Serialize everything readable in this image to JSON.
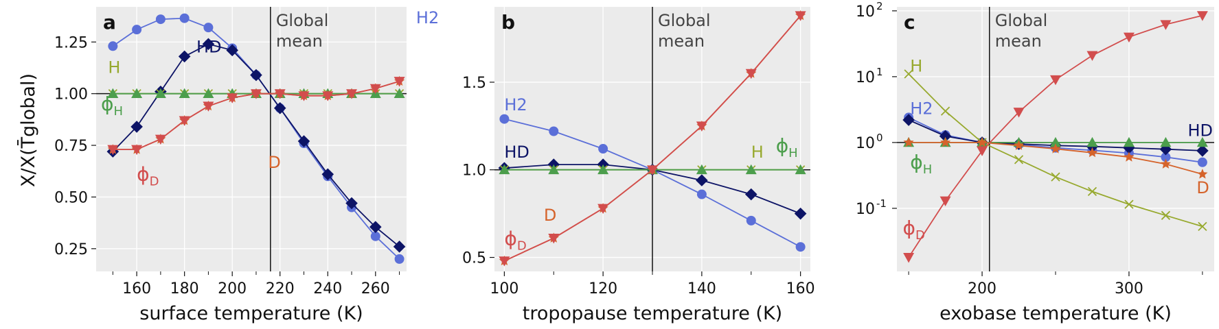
{
  "figure": {
    "ylabel": "X/X(T̄global)",
    "colors": {
      "panel_bg": "#ebebeb",
      "grid": "#ffffff",
      "H2": "#5b6fd8",
      "HD": "#0d1466",
      "H": "#97a92e",
      "D": "#d5632b",
      "phi_H": "#4c9e4c",
      "phi_D": "#d24d4d",
      "line": "#111111"
    }
  },
  "chart_data": [
    {
      "type": "line",
      "panel": "a",
      "xlabel": "surface temperature (K)",
      "xlim": [
        143,
        273
      ],
      "ylim": [
        0.14,
        1.42
      ],
      "yscale": "linear",
      "xticks": [
        160,
        180,
        200,
        220,
        240,
        260
      ],
      "xtick_labels": [
        "160",
        "180",
        "200",
        "220",
        "240",
        "260"
      ],
      "yticks": [
        0.25,
        0.5,
        0.75,
        1.0,
        1.25
      ],
      "ytick_labels": [
        "0.25",
        "0.50",
        "0.75",
        "1.00",
        "1.25"
      ],
      "hline": 1.0,
      "vline": {
        "x": 216,
        "label_line1": "Global",
        "label_line2": "mean"
      },
      "series": [
        {
          "name": "H2",
          "marker": "circle",
          "color_key": "H2",
          "label_pos": [
            277,
            1.34
          ],
          "x": [
            150,
            160,
            170,
            180,
            190,
            200,
            210,
            220,
            230,
            240,
            250,
            260,
            270
          ],
          "y": [
            1.23,
            1.31,
            1.36,
            1.365,
            1.32,
            1.22,
            1.09,
            0.93,
            0.76,
            0.6,
            0.45,
            0.31,
            0.2
          ]
        },
        {
          "name": "HD",
          "marker": "diamond",
          "color_key": "HD",
          "label_pos": [
            185,
            1.2
          ],
          "x": [
            150,
            160,
            170,
            180,
            190,
            200,
            210,
            220,
            230,
            240,
            250,
            260,
            270
          ],
          "y": [
            0.72,
            0.84,
            1.01,
            1.18,
            1.24,
            1.21,
            1.09,
            0.93,
            0.77,
            0.61,
            0.47,
            0.355,
            0.26
          ]
        },
        {
          "name": "H",
          "marker": "x",
          "color_key": "H",
          "label_pos": [
            148,
            1.1
          ],
          "x": [
            150,
            160,
            170,
            180,
            190,
            200,
            210,
            220,
            230,
            240,
            250,
            260,
            270
          ],
          "y": [
            1.0,
            1.0,
            1.0,
            1.0,
            1.0,
            1.0,
            1.0,
            1.0,
            1.0,
            1.0,
            1.0,
            1.0,
            1.0
          ]
        },
        {
          "name": "D",
          "marker": "star",
          "color_key": "D",
          "label_pos": [
            215,
            0.64
          ],
          "x": [
            150,
            160,
            170,
            180,
            190,
            200,
            210,
            220,
            230,
            240,
            250,
            260,
            270
          ],
          "y": [
            0.73,
            0.73,
            0.78,
            0.87,
            0.94,
            0.98,
            1.0,
            1.0,
            0.99,
            0.99,
            1.0,
            1.025,
            1.06
          ]
        },
        {
          "name": "ϕH",
          "marker": "triangle-up",
          "color_key": "phi_H",
          "label_pos": [
            145,
            0.92
          ],
          "x": [
            150,
            160,
            170,
            180,
            190,
            200,
            210,
            220,
            230,
            240,
            250,
            260,
            270
          ],
          "y": [
            1.0,
            1.0,
            1.0,
            1.0,
            1.0,
            1.0,
            1.0,
            1.0,
            1.0,
            1.0,
            1.0,
            1.0,
            1.0
          ]
        },
        {
          "name": "ϕD",
          "marker": "triangle-down",
          "color_key": "phi_D",
          "label_pos": [
            160,
            0.58
          ],
          "x": [
            150,
            160,
            170,
            180,
            190,
            200,
            210,
            220,
            230,
            240,
            250,
            260,
            270
          ],
          "y": [
            0.73,
            0.73,
            0.78,
            0.87,
            0.94,
            0.98,
            1.0,
            1.0,
            0.99,
            0.99,
            1.0,
            1.025,
            1.06
          ]
        }
      ]
    },
    {
      "type": "line",
      "panel": "b",
      "xlabel": "tropopause temperature (K)",
      "xlim": [
        98,
        162
      ],
      "ylim": [
        0.42,
        1.93
      ],
      "yscale": "linear",
      "xticks": [
        100,
        120,
        140,
        160
      ],
      "xtick_labels": [
        "100",
        "120",
        "140",
        "160"
      ],
      "yticks": [
        0.5,
        1.0,
        1.5
      ],
      "ytick_labels": [
        "0.5",
        "1.0",
        "1.5"
      ],
      "hline": 1.0,
      "vline": {
        "x": 130,
        "label_line1": "Global",
        "label_line2": "mean"
      },
      "series": [
        {
          "name": "H2",
          "marker": "circle",
          "color_key": "H2",
          "label_pos": [
            100,
            1.34
          ],
          "x": [
            100,
            110,
            120,
            130,
            140,
            150,
            160
          ],
          "y": [
            1.29,
            1.22,
            1.12,
            1.0,
            0.86,
            0.71,
            0.56
          ]
        },
        {
          "name": "HD",
          "marker": "diamond",
          "color_key": "HD",
          "label_pos": [
            100,
            1.07
          ],
          "x": [
            100,
            110,
            120,
            130,
            140,
            150,
            160
          ],
          "y": [
            1.01,
            1.03,
            1.03,
            1.0,
            0.94,
            0.86,
            0.75
          ]
        },
        {
          "name": "H",
          "marker": "x",
          "color_key": "H",
          "label_pos": [
            150,
            1.07
          ],
          "x": [
            100,
            110,
            120,
            130,
            140,
            150,
            160
          ],
          "y": [
            1.0,
            1.0,
            1.0,
            1.0,
            1.0,
            1.0,
            1.0
          ]
        },
        {
          "name": "D",
          "marker": "star",
          "color_key": "D",
          "label_pos": [
            108,
            0.71
          ],
          "x": [
            100,
            110,
            120,
            130,
            140,
            150,
            160
          ],
          "y": [
            0.48,
            0.61,
            0.78,
            1.0,
            1.25,
            1.55,
            1.88
          ]
        },
        {
          "name": "ϕH",
          "marker": "triangle-up",
          "color_key": "phi_H",
          "label_pos": [
            155,
            1.1
          ],
          "x": [
            100,
            110,
            120,
            130,
            140,
            150,
            160
          ],
          "y": [
            1.0,
            1.0,
            1.0,
            1.0,
            1.0,
            1.0,
            1.0
          ]
        },
        {
          "name": "ϕD",
          "marker": "triangle-down",
          "color_key": "phi_D",
          "label_pos": [
            100,
            0.57
          ],
          "x": [
            100,
            110,
            120,
            130,
            140,
            150,
            160
          ],
          "y": [
            0.48,
            0.61,
            0.78,
            1.0,
            1.25,
            1.55,
            1.88
          ]
        }
      ]
    },
    {
      "type": "line",
      "panel": "c",
      "xlabel": "exobase temperature (K)",
      "xlim": [
        142,
        358
      ],
      "ylim": [
        0.011,
        115
      ],
      "yscale": "log",
      "xticks": [
        200,
        300
      ],
      "xtick_labels": [
        "200",
        "300"
      ],
      "yticks": [
        0.1,
        1,
        10,
        100
      ],
      "ytick_labels": [
        "10",
        "10",
        "10",
        "10"
      ],
      "ytick_exponents": [
        "-1",
        "0",
        "1",
        "2"
      ],
      "hline": 1.0,
      "vline": {
        "x": 205,
        "label_line1": "Global",
        "label_line2": "mean"
      },
      "series": [
        {
          "name": "H2",
          "marker": "circle",
          "color_key": "H2",
          "label_pos": [
            151,
            2.7
          ],
          "x": [
            150,
            175,
            200,
            225,
            250,
            275,
            300,
            325,
            350
          ],
          "y": [
            2.4,
            1.3,
            1.0,
            0.93,
            0.83,
            0.76,
            0.69,
            0.6,
            0.5
          ]
        },
        {
          "name": "HD",
          "marker": "diamond",
          "color_key": "HD",
          "label_pos": [
            340,
            1.25
          ],
          "x": [
            150,
            175,
            200,
            225,
            250,
            275,
            300,
            325,
            350
          ],
          "y": [
            2.2,
            1.25,
            1.0,
            0.95,
            0.9,
            0.87,
            0.83,
            0.79,
            0.75
          ]
        },
        {
          "name": "H",
          "marker": "x",
          "color_key": "H",
          "label_pos": [
            151,
            12
          ],
          "x": [
            150,
            175,
            200,
            225,
            250,
            275,
            300,
            325,
            350
          ],
          "y": [
            11,
            3.0,
            1.0,
            0.55,
            0.3,
            0.18,
            0.115,
            0.078,
            0.053
          ]
        },
        {
          "name": "D",
          "marker": "star",
          "color_key": "D",
          "label_pos": [
            346,
            0.17
          ],
          "x": [
            150,
            175,
            200,
            225,
            250,
            275,
            300,
            325,
            350
          ],
          "y": [
            1.0,
            1.0,
            1.0,
            0.9,
            0.8,
            0.7,
            0.6,
            0.47,
            0.33
          ]
        },
        {
          "name": "ϕH",
          "marker": "triangle-up",
          "color_key": "phi_H",
          "label_pos": [
            151,
            0.4
          ],
          "x": [
            150,
            175,
            200,
            225,
            250,
            275,
            300,
            325,
            350
          ],
          "y": [
            1.0,
            1.0,
            1.0,
            1.0,
            1.0,
            1.0,
            1.0,
            1.0,
            1.0
          ]
        },
        {
          "name": "ϕD",
          "marker": "triangle-down",
          "color_key": "phi_D",
          "label_pos": [
            146,
            0.04
          ],
          "x": [
            150,
            175,
            200,
            225,
            250,
            275,
            300,
            325,
            350
          ],
          "y": [
            0.018,
            0.13,
            0.75,
            2.9,
            9.0,
            21,
            40,
            62,
            85
          ]
        }
      ]
    }
  ]
}
